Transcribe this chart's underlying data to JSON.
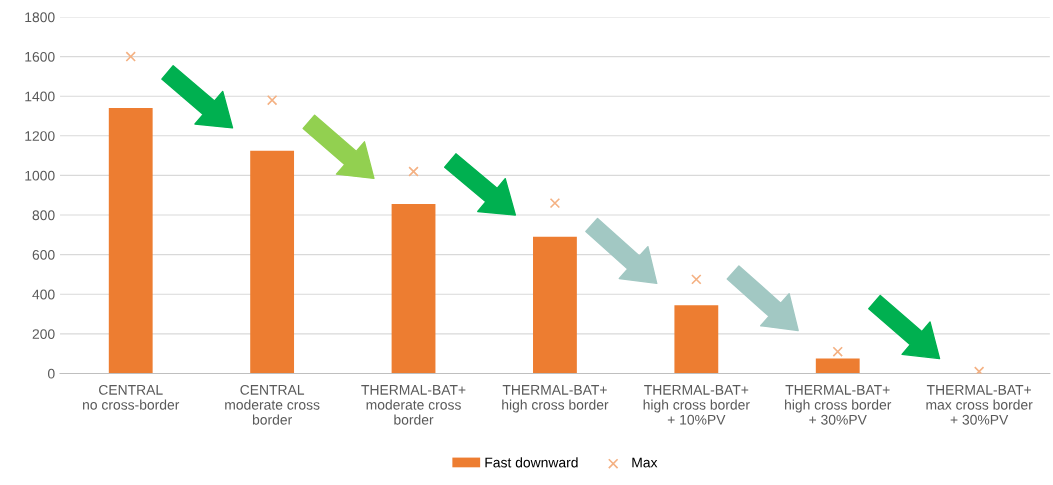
{
  "chart_data": {
    "type": "bar",
    "categories": [
      "CENTRAL\nno cross-border",
      "CENTRAL\nmoderate cross\nborder",
      "THERMAL-BAT+\nmoderate cross\nborder",
      "THERMAL-BAT+\nhigh cross border",
      "THERMAL-BAT+\nhigh cross border\n+ 10%PV",
      "THERMAL-BAT+\nhigh cross border\n+ 30%PV",
      "THERMAL-BAT+\nmax cross border\n+ 30%PV"
    ],
    "series": [
      {
        "name": "Fast downward",
        "color": "#ed7d31",
        "values": [
          1340,
          1125,
          855,
          690,
          345,
          75,
          0
        ]
      },
      {
        "name": "Max",
        "type": "scatter",
        "color": "#f4b183",
        "marker": "cross",
        "values": [
          1600,
          1380,
          1020,
          860,
          475,
          110,
          10
        ]
      }
    ],
    "ylim": [
      0,
      1800
    ],
    "yticks": [
      0,
      200,
      400,
      600,
      800,
      1000,
      1200,
      1400,
      1600,
      1800
    ],
    "grid": "y",
    "legend": "bottom"
  }
}
